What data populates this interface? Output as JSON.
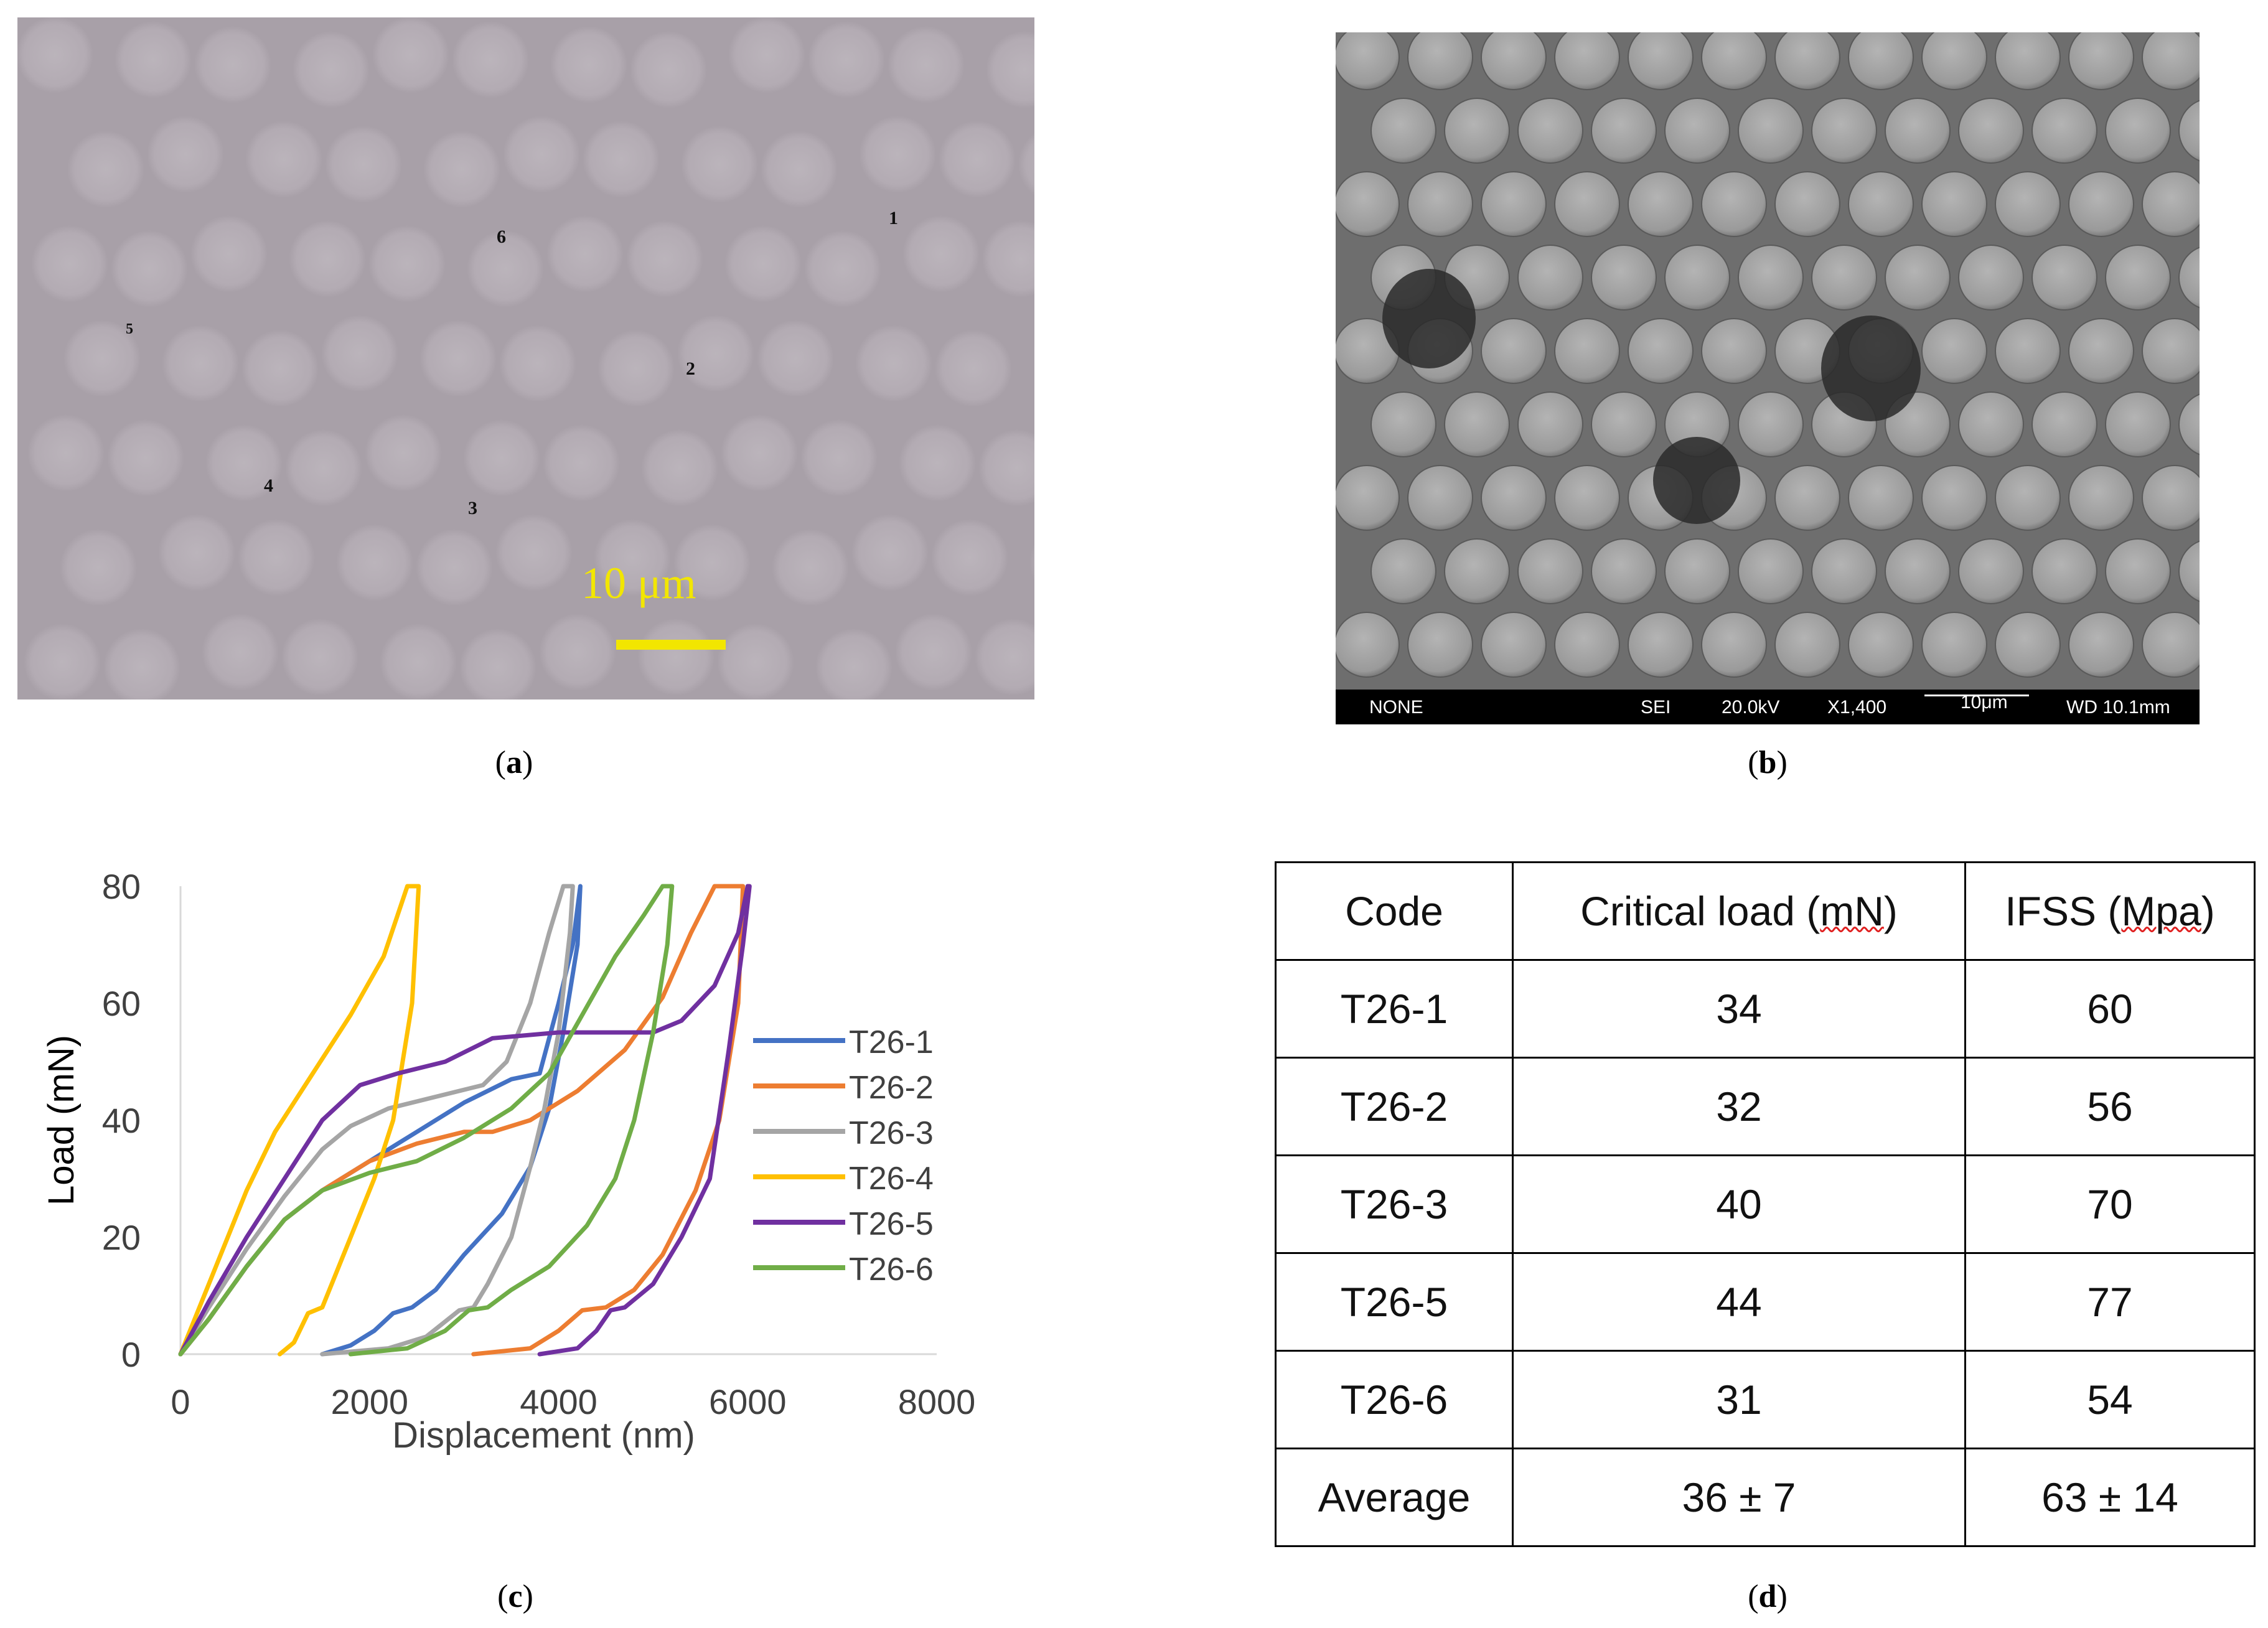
{
  "panel_a": {
    "caption": "a",
    "fiber_labels": [
      "1",
      "2",
      "3",
      "4",
      "5",
      "6"
    ],
    "scale_text": "10 μm"
  },
  "panel_b": {
    "caption": "b",
    "sem_info": {
      "mode": "NONE",
      "detector": "SEI",
      "voltage": "20.0kV",
      "magnification": "X1,400",
      "scale": "10μm",
      "wd": "WD 10.1mm"
    }
  },
  "panel_c": {
    "caption": "c"
  },
  "chart_data": {
    "type": "line",
    "xlabel": "Displacement (nm)",
    "ylabel": "Load (mN)",
    "xlim": [
      0,
      8000
    ],
    "ylim": [
      0,
      80
    ],
    "xticks": [
      "0",
      "2000",
      "4000",
      "6000",
      "8000"
    ],
    "yticks": [
      "0",
      "20",
      "40",
      "60",
      "80"
    ],
    "legend": "right",
    "series": [
      {
        "name": "T26-1",
        "color": "#4472C4",
        "points": [
          [
            0,
            0
          ],
          [
            300,
            6
          ],
          [
            700,
            15
          ],
          [
            1100,
            23
          ],
          [
            1500,
            28
          ],
          [
            2000,
            33
          ],
          [
            2500,
            38
          ],
          [
            3000,
            43
          ],
          [
            3500,
            47
          ],
          [
            3800,
            48
          ],
          [
            4000,
            60
          ],
          [
            4150,
            70
          ],
          [
            4230,
            80
          ],
          [
            4200,
            70
          ],
          [
            4050,
            55
          ],
          [
            3900,
            42
          ],
          [
            3700,
            32
          ],
          [
            3400,
            24
          ],
          [
            3000,
            17
          ],
          [
            2700,
            11
          ],
          [
            2450,
            8
          ],
          [
            2250,
            7
          ],
          [
            2050,
            4
          ],
          [
            1800,
            1.5
          ],
          [
            1500,
            0
          ]
        ]
      },
      {
        "name": "T26-2",
        "color": "#ED7D31",
        "points": [
          [
            0,
            0
          ],
          [
            300,
            6
          ],
          [
            700,
            15
          ],
          [
            1100,
            23
          ],
          [
            1500,
            28
          ],
          [
            2000,
            33
          ],
          [
            2500,
            36
          ],
          [
            3000,
            38
          ],
          [
            3300,
            38
          ],
          [
            3700,
            40
          ],
          [
            4200,
            45
          ],
          [
            4700,
            52
          ],
          [
            5100,
            61
          ],
          [
            5400,
            72
          ],
          [
            5650,
            80
          ],
          [
            5950,
            80
          ],
          [
            5900,
            60
          ],
          [
            5700,
            40
          ],
          [
            5450,
            28
          ],
          [
            5100,
            17
          ],
          [
            4800,
            11
          ],
          [
            4500,
            8
          ],
          [
            4250,
            7.5
          ],
          [
            4000,
            4
          ],
          [
            3700,
            1
          ],
          [
            3100,
            0
          ]
        ]
      },
      {
        "name": "T26-3",
        "color": "#A5A5A5",
        "points": [
          [
            0,
            0
          ],
          [
            300,
            8
          ],
          [
            700,
            18
          ],
          [
            1100,
            27
          ],
          [
            1500,
            35
          ],
          [
            1800,
            39
          ],
          [
            2200,
            42
          ],
          [
            2700,
            44
          ],
          [
            3200,
            46
          ],
          [
            3450,
            50
          ],
          [
            3700,
            60
          ],
          [
            3900,
            72
          ],
          [
            4050,
            80
          ],
          [
            4150,
            80
          ],
          [
            4120,
            72
          ],
          [
            4000,
            55
          ],
          [
            3850,
            42
          ],
          [
            3700,
            32
          ],
          [
            3500,
            20
          ],
          [
            3250,
            12
          ],
          [
            3100,
            8
          ],
          [
            2950,
            7.5
          ],
          [
            2600,
            3
          ],
          [
            2200,
            1
          ],
          [
            1500,
            0
          ]
        ]
      },
      {
        "name": "T26-4",
        "color": "#FFC000",
        "points": [
          [
            0,
            0
          ],
          [
            300,
            12
          ],
          [
            700,
            28
          ],
          [
            1000,
            38
          ],
          [
            1400,
            48
          ],
          [
            1800,
            58
          ],
          [
            2150,
            68
          ],
          [
            2400,
            80
          ],
          [
            2520,
            80
          ],
          [
            2450,
            60
          ],
          [
            2250,
            40
          ],
          [
            2050,
            30
          ],
          [
            1850,
            22
          ],
          [
            1650,
            14
          ],
          [
            1500,
            8
          ],
          [
            1350,
            7
          ],
          [
            1200,
            2
          ],
          [
            1050,
            0
          ]
        ]
      },
      {
        "name": "T26-5",
        "color": "#7030A0",
        "points": [
          [
            0,
            0
          ],
          [
            300,
            9
          ],
          [
            700,
            20
          ],
          [
            1100,
            30
          ],
          [
            1500,
            40
          ],
          [
            1900,
            46
          ],
          [
            2300,
            48
          ],
          [
            2800,
            50
          ],
          [
            3300,
            54
          ],
          [
            4000,
            55
          ],
          [
            4600,
            55
          ],
          [
            5000,
            55
          ],
          [
            5300,
            57
          ],
          [
            5650,
            63
          ],
          [
            5900,
            72
          ],
          [
            6000,
            80
          ],
          [
            6020,
            80
          ],
          [
            5950,
            70
          ],
          [
            5800,
            52
          ],
          [
            5600,
            30
          ],
          [
            5300,
            20
          ],
          [
            5000,
            12
          ],
          [
            4700,
            8
          ],
          [
            4550,
            7.5
          ],
          [
            4400,
            4
          ],
          [
            4200,
            1
          ],
          [
            3800,
            0
          ]
        ]
      },
      {
        "name": "T26-6",
        "color": "#70AD47",
        "points": [
          [
            0,
            0
          ],
          [
            300,
            6
          ],
          [
            700,
            15
          ],
          [
            1100,
            23
          ],
          [
            1500,
            28
          ],
          [
            2000,
            31
          ],
          [
            2500,
            33
          ],
          [
            3000,
            37
          ],
          [
            3500,
            42
          ],
          [
            3900,
            48
          ],
          [
            4250,
            58
          ],
          [
            4600,
            68
          ],
          [
            4900,
            75
          ],
          [
            5100,
            80
          ],
          [
            5200,
            80
          ],
          [
            5150,
            70
          ],
          [
            5000,
            55
          ],
          [
            4800,
            40
          ],
          [
            4600,
            30
          ],
          [
            4300,
            22
          ],
          [
            3900,
            15
          ],
          [
            3500,
            11
          ],
          [
            3250,
            8
          ],
          [
            3050,
            7.5
          ],
          [
            2800,
            4
          ],
          [
            2400,
            1
          ],
          [
            1800,
            0
          ]
        ]
      }
    ]
  },
  "panel_d": {
    "caption": "d",
    "headers": [
      "Code",
      "Critical load (mN)",
      "IFSS (Mpa)"
    ],
    "rows": [
      [
        "T26-1",
        "34",
        "60"
      ],
      [
        "T26-2",
        "32",
        "56"
      ],
      [
        "T26-3",
        "40",
        "70"
      ],
      [
        "T26-5",
        "44",
        "77"
      ],
      [
        "T26-6",
        "31",
        "54"
      ],
      [
        "Average",
        "36 ± 7",
        "63 ± 14"
      ]
    ]
  }
}
